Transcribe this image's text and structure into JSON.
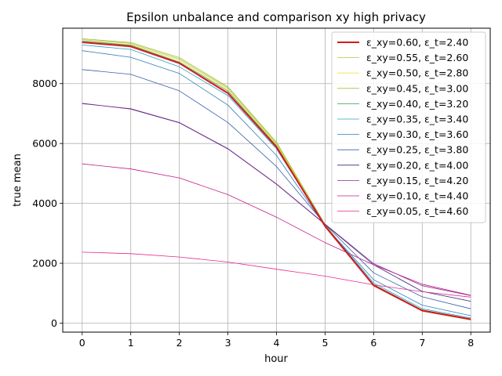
{
  "chart_data": {
    "type": "line",
    "title": "Epsilon unbalance and comparison xy high privacy",
    "xlabel": "hour",
    "ylabel": "true mean",
    "x": [
      0,
      1,
      2,
      3,
      4,
      5,
      6,
      7,
      8
    ],
    "xlim": [
      -0.4,
      8.4
    ],
    "ylim": [
      -300,
      9850
    ],
    "xticks": [
      0,
      1,
      2,
      3,
      4,
      5,
      6,
      7,
      8
    ],
    "yticks": [
      0,
      2000,
      4000,
      6000,
      8000
    ],
    "grid": true,
    "legend_position": "upper right",
    "series": [
      {
        "name": "ε_xy=0.60, ε_t=2.40",
        "color": "#d7191c",
        "width": 2,
        "values": [
          9380,
          9240,
          8680,
          7680,
          5880,
          3240,
          1260,
          420,
          130
        ]
      },
      {
        "name": "ε_xy=0.55, ε_t=2.60",
        "color": "#b5c33a",
        "width": 0.8,
        "values": [
          9470,
          9340,
          8820,
          7850,
          6000,
          3280,
          1250,
          400,
          110
        ]
      },
      {
        "name": "ε_xy=0.50, ε_t=2.80",
        "color": "#f0e040",
        "width": 0.8,
        "values": [
          9430,
          9300,
          8770,
          7800,
          5960,
          3270,
          1260,
          410,
          120
        ]
      },
      {
        "name": "ε_xy=0.45, ε_t=3.00",
        "color": "#9dbf3a",
        "width": 0.8,
        "values": [
          9500,
          9370,
          8870,
          7890,
          6040,
          3300,
          1260,
          400,
          110
        ]
      },
      {
        "name": "ε_xy=0.40, ε_t=3.20",
        "color": "#2ca25f",
        "width": 0.8,
        "values": [
          9420,
          9280,
          8720,
          7750,
          5920,
          3270,
          1290,
          440,
          140
        ]
      },
      {
        "name": "ε_xy=0.35, ε_t=3.40",
        "color": "#2b9fc8",
        "width": 0.8,
        "values": [
          9290,
          9140,
          8560,
          7600,
          5820,
          3260,
          1340,
          480,
          170
        ]
      },
      {
        "name": "ε_xy=0.30, ε_t=3.60",
        "color": "#2c7fb8",
        "width": 0.8,
        "values": [
          9100,
          8880,
          8340,
          7280,
          5600,
          3240,
          1450,
          600,
          250
        ]
      },
      {
        "name": "ε_xy=0.25, ε_t=3.80",
        "color": "#3a5fa8",
        "width": 0.8,
        "values": [
          8470,
          8310,
          7760,
          6700,
          5230,
          3300,
          1680,
          880,
          480
        ]
      },
      {
        "name": "ε_xy=0.20, ε_t=4.00",
        "color": "#2a2a78",
        "width": 0.8,
        "values": [
          7340,
          7150,
          6690,
          5820,
          4640,
          3300,
          1950,
          1060,
          730
        ]
      },
      {
        "name": "ε_xy=0.15, ε_t=4.20",
        "color": "#8b2d8e",
        "width": 0.8,
        "values": [
          7330,
          7160,
          6700,
          5830,
          4650,
          3310,
          1990,
          1250,
          920
        ]
      },
      {
        "name": "ε_xy=0.10, ε_t=4.40",
        "color": "#c51b8a",
        "width": 0.8,
        "values": [
          5320,
          5150,
          4850,
          4290,
          3540,
          2690,
          1950,
          1300,
          930
        ]
      },
      {
        "name": "ε_xy=0.05, ε_t=4.60",
        "color": "#e7298a",
        "width": 0.8,
        "values": [
          2370,
          2320,
          2210,
          2040,
          1800,
          1570,
          1280,
          1050,
          870
        ]
      }
    ]
  }
}
